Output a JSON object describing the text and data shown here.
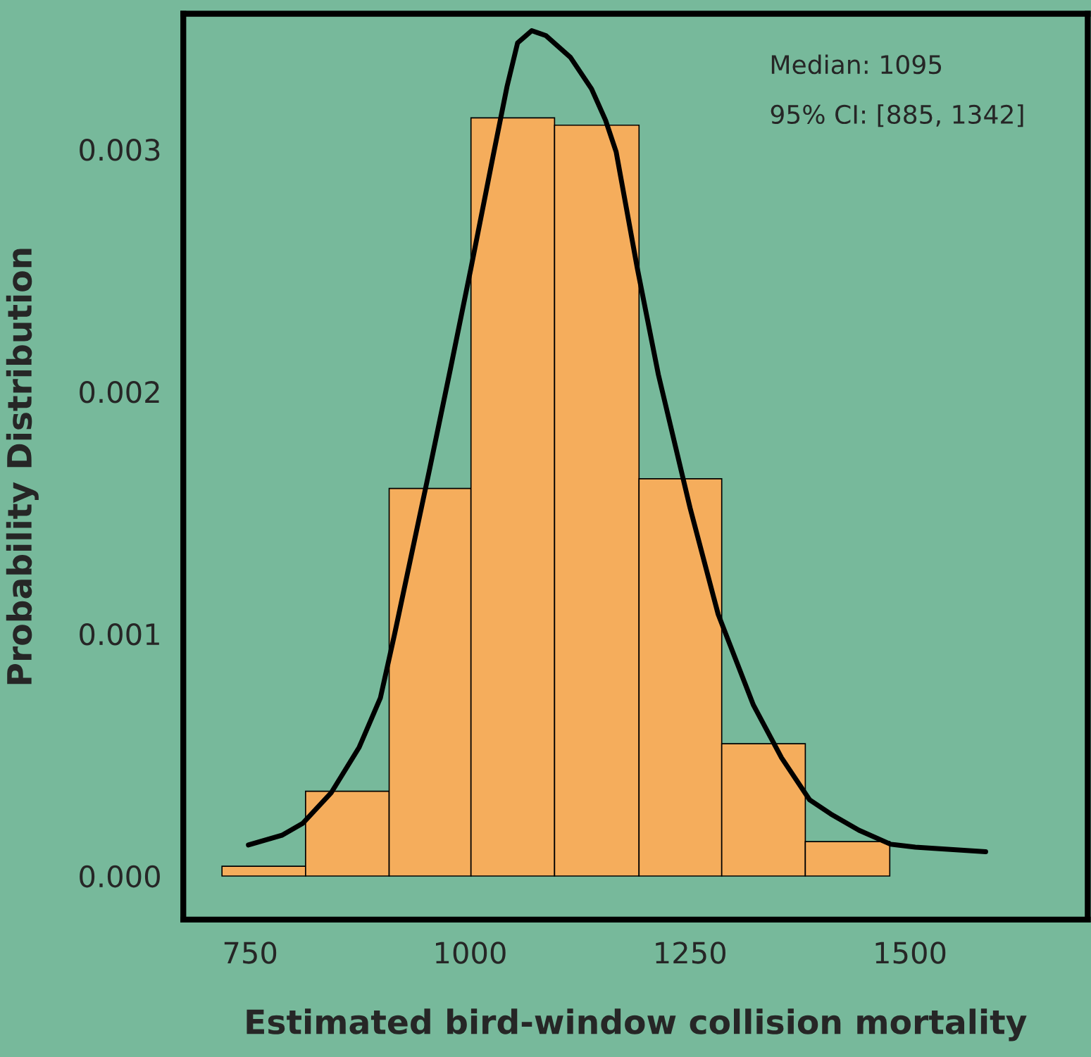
{
  "chart_data": {
    "type": "histogram",
    "xlabel": "Estimated bird-window collision mortality",
    "ylabel": "Probability Distribution",
    "bins": [
      718,
      813,
      908,
      1001,
      1096,
      1192,
      1286,
      1381,
      1477
    ],
    "values": [
      4e-05,
      0.00035,
      0.0016,
      0.00313,
      0.0031,
      0.00164,
      0.000546,
      0.000142
    ],
    "color": "#f5ad5c",
    "series": [
      {
        "type": "line",
        "color": "#000000",
        "x": [
          748,
          786,
          810,
          842,
          874,
          898,
          914,
          954,
          978,
          1001,
          1026,
          1042,
          1054,
          1070,
          1086,
          1114,
          1138,
          1154,
          1166,
          1190,
          1214,
          1250,
          1282,
          1322,
          1354,
          1386,
          1410,
          1442,
          1478,
          1506,
          1586
        ],
        "values": [
          0.000128,
          0.000168,
          0.000218,
          0.000343,
          0.000532,
          0.000735,
          0.000996,
          0.00168,
          0.0021,
          0.00251,
          0.00297,
          0.00326,
          0.00344,
          0.00349,
          0.00347,
          0.00338,
          0.00325,
          0.00312,
          0.00299,
          0.00251,
          0.00207,
          0.00152,
          0.00108,
          0.000706,
          0.000488,
          0.000314,
          0.000256,
          0.000189,
          0.000131,
          0.000119,
          0.0001
        ]
      }
    ],
    "xlim": [
      674,
      1702
    ],
    "ylim": [
      -0.00018,
      0.00356
    ],
    "xticks": [
      750,
      1000,
      1250,
      1500
    ],
    "yticks": [
      {
        "value": 0,
        "label": "0.000"
      },
      {
        "value": 0.001,
        "label": "0.001"
      },
      {
        "value": 0.002,
        "label": "0.002"
      },
      {
        "value": 0.003,
        "label": "0.003"
      }
    ],
    "annotations": [
      "Median: 1095",
      "95% CI: [885, 1342]"
    ],
    "grid": false,
    "legend": false
  }
}
